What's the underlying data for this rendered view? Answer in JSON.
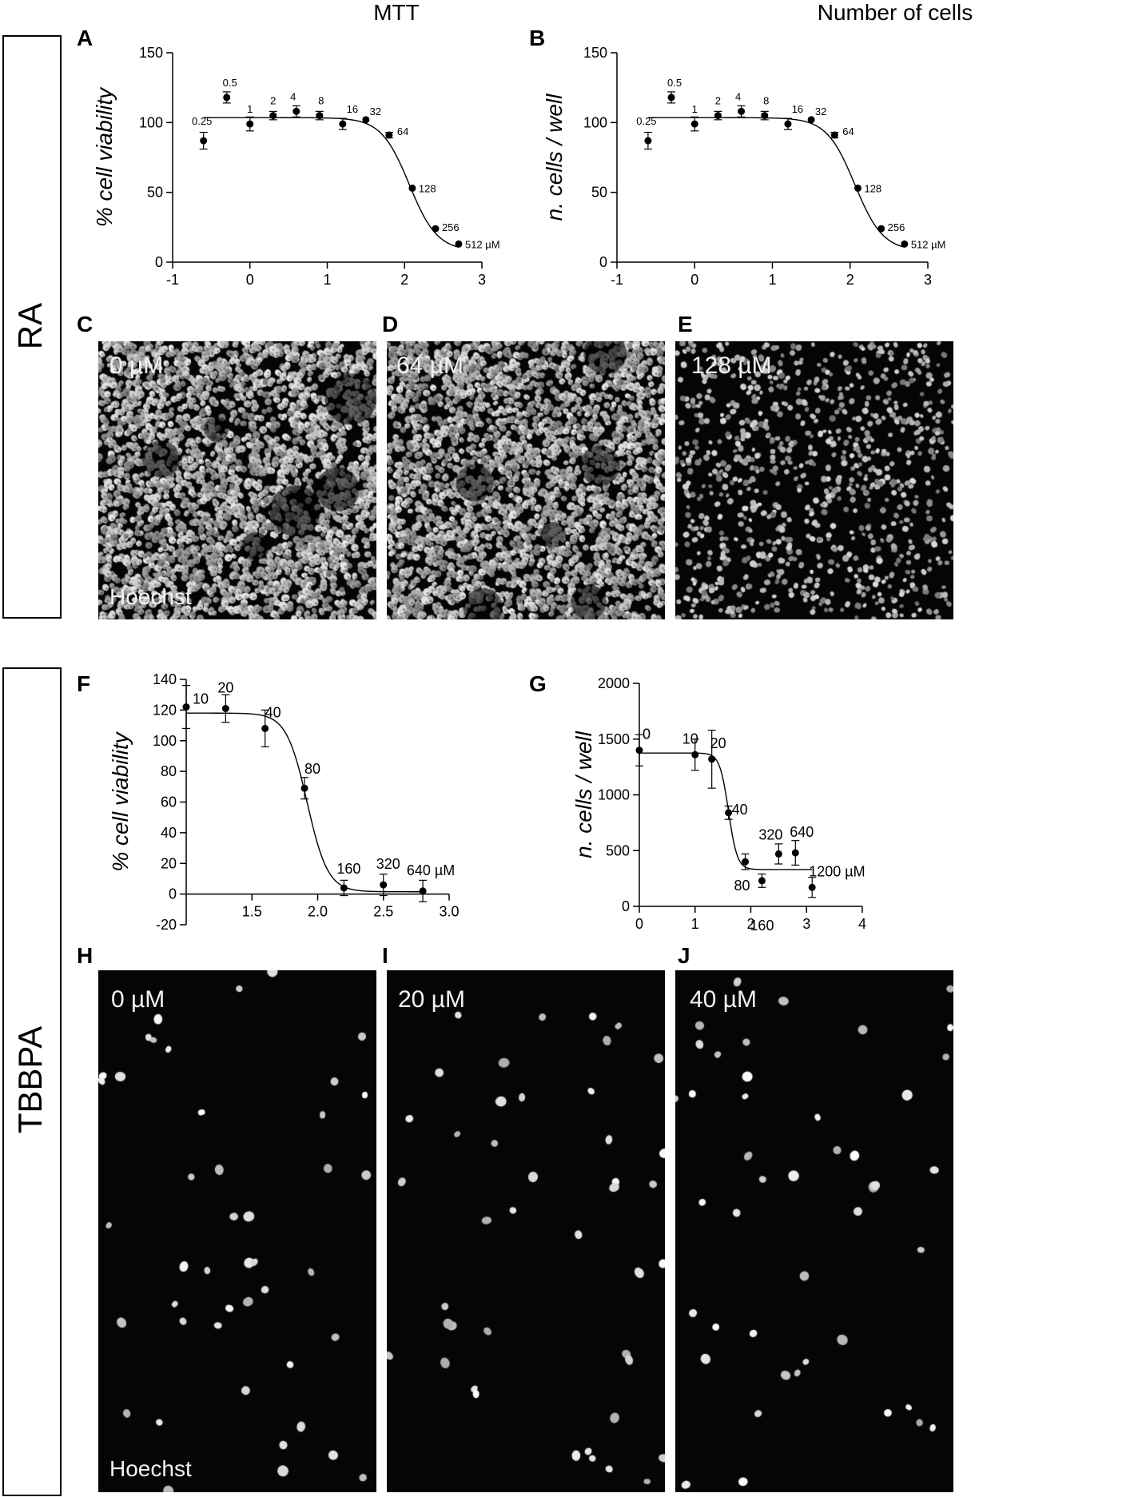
{
  "columns": {
    "left": "MTT",
    "right": "Number of cells"
  },
  "sections": {
    "top": "RA",
    "bottom": "TBBPA"
  },
  "panel_letters": {
    "A": "A",
    "B": "B",
    "C": "C",
    "D": "D",
    "E": "E",
    "F": "F",
    "G": "G",
    "H": "H",
    "I": "I",
    "J": "J"
  },
  "micrographs": {
    "C": {
      "conc": "0 µM",
      "stain": "Hoechst",
      "nuclei": "dense",
      "seed": 11
    },
    "D": {
      "conc": "64 µM",
      "stain": "",
      "nuclei": "dense",
      "seed": 23
    },
    "E": {
      "conc": "128 µM",
      "stain": "",
      "nuclei": "medium",
      "seed": 37
    },
    "H": {
      "conc": "0 µM",
      "stain": "Hoechst",
      "nuclei": "sparse",
      "seed": 41
    },
    "I": {
      "conc": "20 µM",
      "stain": "",
      "nuclei": "sparse",
      "seed": 53
    },
    "J": {
      "conc": "40 µM",
      "stain": "",
      "nuclei": "sparse",
      "seed": 67
    }
  },
  "chart_data": [
    {
      "id": "A",
      "type": "scatter",
      "ylabel": "% cell viability",
      "xlim": [
        -1,
        3
      ],
      "ylim": [
        0,
        150
      ],
      "xticks": [
        -1,
        0,
        1,
        2,
        3
      ],
      "yticks": [
        0,
        50,
        100,
        150
      ],
      "xtick_labels": [
        "-1",
        "0",
        "1",
        "2",
        "3"
      ],
      "ytick_labels": [
        "0",
        "50",
        "100",
        "150"
      ],
      "points": [
        {
          "x": -0.6,
          "y": 87,
          "err": 6,
          "label": "0.25"
        },
        {
          "x": -0.3,
          "y": 118,
          "err": 4,
          "label": "0.5"
        },
        {
          "x": 0.0,
          "y": 99,
          "err": 5,
          "label": "1"
        },
        {
          "x": 0.3,
          "y": 105,
          "err": 3,
          "label": "2"
        },
        {
          "x": 0.6,
          "y": 108,
          "err": 4,
          "label": "4"
        },
        {
          "x": 0.9,
          "y": 105,
          "err": 3,
          "label": "8"
        },
        {
          "x": 1.2,
          "y": 99,
          "err": 4,
          "label": "16"
        },
        {
          "x": 1.5,
          "y": 102,
          "err": 0,
          "label": "32"
        },
        {
          "x": 1.8,
          "y": 91,
          "err": 2,
          "label": "64"
        },
        {
          "x": 2.1,
          "y": 53,
          "err": 0,
          "label": "128"
        },
        {
          "x": 2.4,
          "y": 24,
          "err": 0,
          "label": "256"
        },
        {
          "x": 2.7,
          "y": 13,
          "err": 0,
          "label": "512 µM"
        }
      ],
      "fit": {
        "top": 103.5,
        "bottom": 8,
        "logIC50": 2.06,
        "hill": -2.4,
        "xmin": -0.6,
        "xmax": 2.7
      }
    },
    {
      "id": "B",
      "type": "scatter",
      "ylabel": "n. cells / well",
      "xlim": [
        -1,
        3
      ],
      "ylim": [
        0,
        150
      ],
      "xticks": [
        -1,
        0,
        1,
        2,
        3
      ],
      "yticks": [
        0,
        50,
        100,
        150
      ],
      "xtick_labels": [
        "-1",
        "0",
        "1",
        "2",
        "3"
      ],
      "ytick_labels": [
        "0",
        "50",
        "100",
        "150"
      ],
      "points": [
        {
          "x": -0.6,
          "y": 87,
          "err": 6,
          "label": "0.25"
        },
        {
          "x": -0.3,
          "y": 118,
          "err": 4,
          "label": "0.5"
        },
        {
          "x": 0.0,
          "y": 99,
          "err": 5,
          "label": "1"
        },
        {
          "x": 0.3,
          "y": 105,
          "err": 3,
          "label": "2"
        },
        {
          "x": 0.6,
          "y": 108,
          "err": 4,
          "label": "4"
        },
        {
          "x": 0.9,
          "y": 105,
          "err": 3,
          "label": "8"
        },
        {
          "x": 1.2,
          "y": 99,
          "err": 4,
          "label": "16"
        },
        {
          "x": 1.5,
          "y": 102,
          "err": 0,
          "label": "32"
        },
        {
          "x": 1.8,
          "y": 91,
          "err": 2,
          "label": "64"
        },
        {
          "x": 2.1,
          "y": 53,
          "err": 0,
          "label": "128"
        },
        {
          "x": 2.4,
          "y": 24,
          "err": 0,
          "label": "256"
        },
        {
          "x": 2.7,
          "y": 13,
          "err": 0,
          "label": "512 µM"
        }
      ],
      "fit": {
        "top": 103.5,
        "bottom": 8,
        "logIC50": 2.06,
        "hill": -2.4,
        "xmin": -0.6,
        "xmax": 2.7
      }
    },
    {
      "id": "F",
      "type": "scatter",
      "ylabel": "% cell viability",
      "xlim": [
        1.0,
        3.0
      ],
      "ylim": [
        -20,
        140
      ],
      "xticks": [
        1.5,
        2.0,
        2.5,
        3.0
      ],
      "yticks": [
        -20,
        0,
        20,
        40,
        60,
        80,
        100,
        120,
        140
      ],
      "xtick_labels": [
        "1.5",
        "2.0",
        "2.5",
        "3.0"
      ],
      "ytick_labels": [
        "-20",
        "0",
        "20",
        "40",
        "60",
        "80",
        "100",
        "120",
        "140"
      ],
      "points": [
        {
          "x": 1.0,
          "y": 122,
          "err": 14,
          "label": "10"
        },
        {
          "x": 1.3,
          "y": 121,
          "err": 9,
          "label": "20"
        },
        {
          "x": 1.6,
          "y": 108,
          "err": 12,
          "label": "40"
        },
        {
          "x": 1.9,
          "y": 69,
          "err": 7,
          "label": "80"
        },
        {
          "x": 2.2,
          "y": 4,
          "err": 5,
          "label": "160"
        },
        {
          "x": 2.5,
          "y": 6,
          "err": 7,
          "label": "320"
        },
        {
          "x": 2.8,
          "y": 2,
          "err": 7,
          "label": "640 µM"
        }
      ],
      "fit": {
        "top": 118,
        "bottom": 1.5,
        "logIC50": 1.92,
        "hill": -5.5,
        "xmin": 1.0,
        "xmax": 2.8
      }
    },
    {
      "id": "G",
      "type": "scatter",
      "ylabel": "n. cells / well",
      "xlim": [
        0,
        4
      ],
      "ylim": [
        0,
        2000
      ],
      "xticks": [
        0,
        1,
        2,
        3,
        4
      ],
      "yticks": [
        0,
        500,
        1000,
        1500,
        2000
      ],
      "xtick_labels": [
        "0",
        "1",
        "2",
        "3",
        "4"
      ],
      "ytick_labels": [
        "0",
        "500",
        "1000",
        "1500",
        "2000"
      ],
      "points": [
        {
          "x": 0.0,
          "y": 1400,
          "err": 140,
          "label": "0"
        },
        {
          "x": 1.0,
          "y": 1360,
          "err": 140,
          "label": "10"
        },
        {
          "x": 1.3,
          "y": 1320,
          "err": 260,
          "label": "20"
        },
        {
          "x": 1.6,
          "y": 840,
          "err": 60,
          "label": "40"
        },
        {
          "x": 1.9,
          "y": 400,
          "err": 70,
          "label": "80"
        },
        {
          "x": 2.2,
          "y": 230,
          "err": 60,
          "label": "160"
        },
        {
          "x": 2.5,
          "y": 470,
          "err": 90,
          "label": "320"
        },
        {
          "x": 2.8,
          "y": 480,
          "err": 110,
          "label": "640"
        },
        {
          "x": 3.1,
          "y": 170,
          "err": 90,
          "label": "1200 µM"
        }
      ],
      "fit": {
        "top": 1375,
        "bottom": 330,
        "logIC50": 1.6,
        "hill": -5.5,
        "xmin": 0.0,
        "xmax": 3.1
      }
    }
  ]
}
